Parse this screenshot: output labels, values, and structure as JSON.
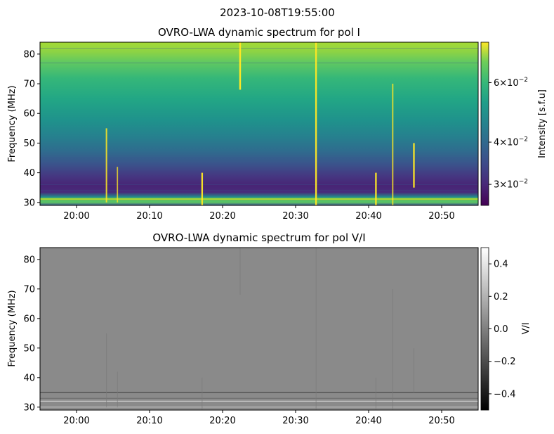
{
  "figure": {
    "suptitle": "2023-10-08T19:55:00"
  },
  "chart_data": [
    {
      "type": "heatmap",
      "title": "OVRO-LWA dynamic spectrum for pol I",
      "ylabel": "Frequency (MHz)",
      "ylim": [
        29,
        84
      ],
      "y_ticks": [
        30,
        40,
        50,
        60,
        70,
        80
      ],
      "x_ticks": [
        "20:00",
        "20:10",
        "20:20",
        "20:30",
        "20:40",
        "20:50"
      ],
      "x_tick_minutes": [
        5,
        15,
        25,
        35,
        45,
        55
      ],
      "x_range_minutes": [
        0,
        60
      ],
      "colormap": "viridis",
      "colorbar": {
        "label": "Intensity [s.f.u]",
        "scale": "log",
        "range": [
          0.026,
          0.079
        ],
        "ticks": [
          {
            "mantissa": "3",
            "exp": "−2",
            "value": 0.03
          },
          {
            "mantissa": "4",
            "exp": "−2",
            "value": 0.04
          },
          {
            "mantissa": "6",
            "exp": "−2",
            "value": 0.06
          }
        ]
      },
      "bursts": [
        {
          "minute": 9.1,
          "fmin": 30,
          "fmax": 55,
          "level": 0.7
        },
        {
          "minute": 10.6,
          "fmin": 30,
          "fmax": 42,
          "level": 0.5
        },
        {
          "minute": 22.2,
          "fmin": 29,
          "fmax": 40,
          "level": 0.9
        },
        {
          "minute": 27.4,
          "fmin": 68,
          "fmax": 84,
          "level": 1.0
        },
        {
          "minute": 37.8,
          "fmin": 29,
          "fmax": 84,
          "level": 0.9
        },
        {
          "minute": 46.0,
          "fmin": 29,
          "fmax": 40,
          "level": 0.9
        },
        {
          "minute": 48.3,
          "fmin": 29,
          "fmax": 70,
          "level": 0.6
        },
        {
          "minute": 51.2,
          "fmin": 35,
          "fmax": 50,
          "level": 0.9
        }
      ]
    },
    {
      "type": "heatmap",
      "title": "OVRO-LWA dynamic spectrum for pol V/I",
      "ylabel": "Frequency (MHz)",
      "ylim": [
        29,
        84
      ],
      "y_ticks": [
        30,
        40,
        50,
        60,
        70,
        80
      ],
      "x_ticks": [
        "20:00",
        "20:10",
        "20:20",
        "20:30",
        "20:40",
        "20:50"
      ],
      "x_tick_minutes": [
        5,
        15,
        25,
        35,
        45,
        55
      ],
      "x_range_minutes": [
        0,
        60
      ],
      "colormap": "gray",
      "colorbar": {
        "label": "V/I",
        "scale": "linear",
        "range": [
          -0.5,
          0.5
        ],
        "ticks": [
          {
            "label": "0.4",
            "value": 0.4
          },
          {
            "label": "0.2",
            "value": 0.2
          },
          {
            "label": "0.0",
            "value": 0.0
          },
          {
            "label": "−0.2",
            "value": -0.2
          },
          {
            "label": "−0.4",
            "value": -0.4
          }
        ]
      }
    }
  ]
}
